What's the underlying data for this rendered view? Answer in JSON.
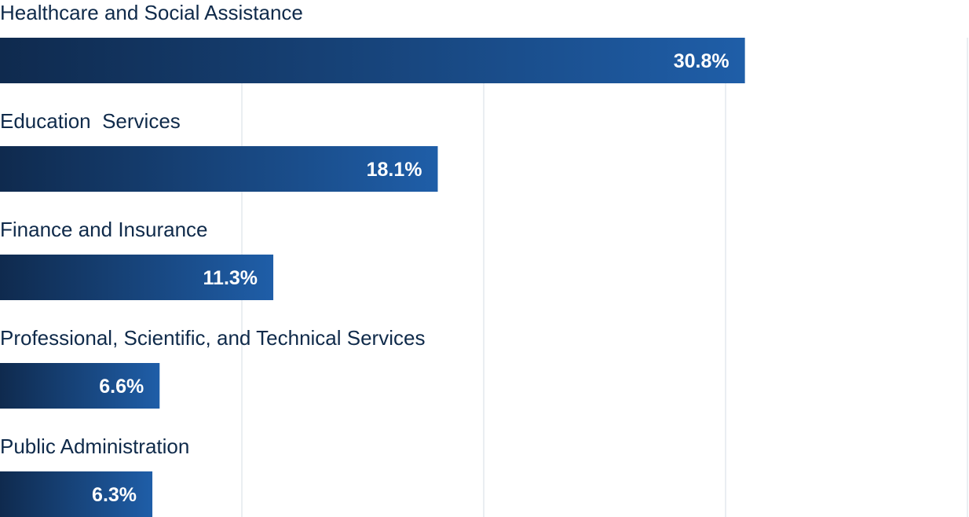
{
  "chart_data": {
    "type": "bar",
    "orientation": "horizontal",
    "categories": [
      "Healthcare and Social Assistance",
      "Education  Services",
      "Finance and Insurance",
      "Professional, Scientific, and Technical Services",
      "Public Administration"
    ],
    "values": [
      30.8,
      18.1,
      11.3,
      6.6,
      6.3
    ],
    "value_labels": [
      "30.8%",
      "18.1%",
      "11.3%",
      "6.6%",
      "6.3%"
    ],
    "unit": "%",
    "xlim": [
      0,
      40
    ],
    "x_gridlines": [
      10,
      20,
      30,
      40
    ],
    "grid": true,
    "legend": "none",
    "title": "",
    "xlabel": "",
    "ylabel": ""
  },
  "colors": {
    "bar_gradient_start": "#0f2a4e",
    "bar_gradient_end": "#1f5ea8",
    "category_text": "#0f2a4a",
    "value_text": "#ffffff",
    "gridline": "#e4e8ee"
  }
}
